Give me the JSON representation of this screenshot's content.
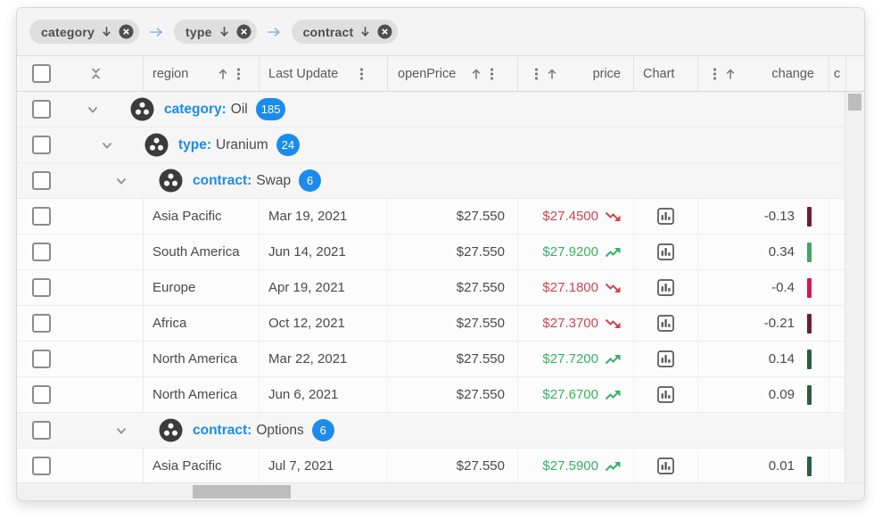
{
  "group_panel": {
    "chips": [
      {
        "label": "category",
        "sort": "desc"
      },
      {
        "label": "type",
        "sort": "desc"
      },
      {
        "label": "contract",
        "sort": "desc"
      }
    ]
  },
  "grid": {
    "columns": {
      "region": "region",
      "last_update": "Last Update",
      "open_price": "openPrice",
      "price": "price",
      "chart": "Chart",
      "change": "change",
      "clipped": "c"
    },
    "rows": [
      {
        "type": "group",
        "level": 1,
        "field_label": "category:",
        "value": "Oil",
        "count": "185"
      },
      {
        "type": "group",
        "level": 2,
        "field_label": "type:",
        "value": "Uranium",
        "count": "24"
      },
      {
        "type": "group",
        "level": 3,
        "field_label": "contract:",
        "value": "Swap",
        "count": "6"
      },
      {
        "type": "data",
        "region": "Asia Pacific",
        "last_update": "Mar 19, 2021",
        "open_price": "$27.550",
        "price": "$27.4500",
        "trend": "down",
        "change": "-0.13",
        "bar_color": "#6f1d36"
      },
      {
        "type": "data",
        "region": "South America",
        "last_update": "Jun 14, 2021",
        "open_price": "$27.550",
        "price": "$27.9200",
        "trend": "up",
        "change": "0.34",
        "bar_color": "#43a45f"
      },
      {
        "type": "data",
        "region": "Europe",
        "last_update": "Apr 19, 2021",
        "open_price": "$27.550",
        "price": "$27.1800",
        "trend": "down",
        "change": "-0.4",
        "bar_color": "#d8194e"
      },
      {
        "type": "data",
        "region": "Africa",
        "last_update": "Oct 12, 2021",
        "open_price": "$27.550",
        "price": "$27.3700",
        "trend": "down",
        "change": "-0.21",
        "bar_color": "#6f1d36"
      },
      {
        "type": "data",
        "region": "North America",
        "last_update": "Mar 22, 2021",
        "open_price": "$27.550",
        "price": "$27.7200",
        "trend": "up",
        "change": "0.14",
        "bar_color": "#2c5f3d"
      },
      {
        "type": "data",
        "region": "North America",
        "last_update": "Jun 6, 2021",
        "open_price": "$27.550",
        "price": "$27.6700",
        "trend": "up",
        "change": "0.09",
        "bar_color": "#2c5f3d"
      },
      {
        "type": "group",
        "level": 3,
        "field_label": "contract:",
        "value": "Options",
        "count": "6"
      },
      {
        "type": "data",
        "region": "Asia Pacific",
        "last_update": "Jul 7, 2021",
        "open_price": "$27.550",
        "price": "$27.5900",
        "trend": "up",
        "change": "0.01",
        "bar_color": "#2c5f3d"
      }
    ]
  },
  "colors": {
    "accent_blue": "#1b8ceb",
    "price_up": "#37b163",
    "price_down": "#d14352",
    "connector_blue": "#8fb2dd",
    "group_icon_dark": "#3b3b3b"
  },
  "icons": {
    "chip_sort": "arrow-down",
    "chip_remove": "circle-x",
    "group_connector": "arrow-right",
    "collapse_all": "double-chevron",
    "sort_asc": "arrow-up",
    "column_menu": "vertical-dots",
    "group_marker": "circle-three-dots",
    "chart_cell": "bar-chart",
    "trend_up": "zigzag-arrow-up",
    "trend_down": "zigzag-arrow-down"
  }
}
